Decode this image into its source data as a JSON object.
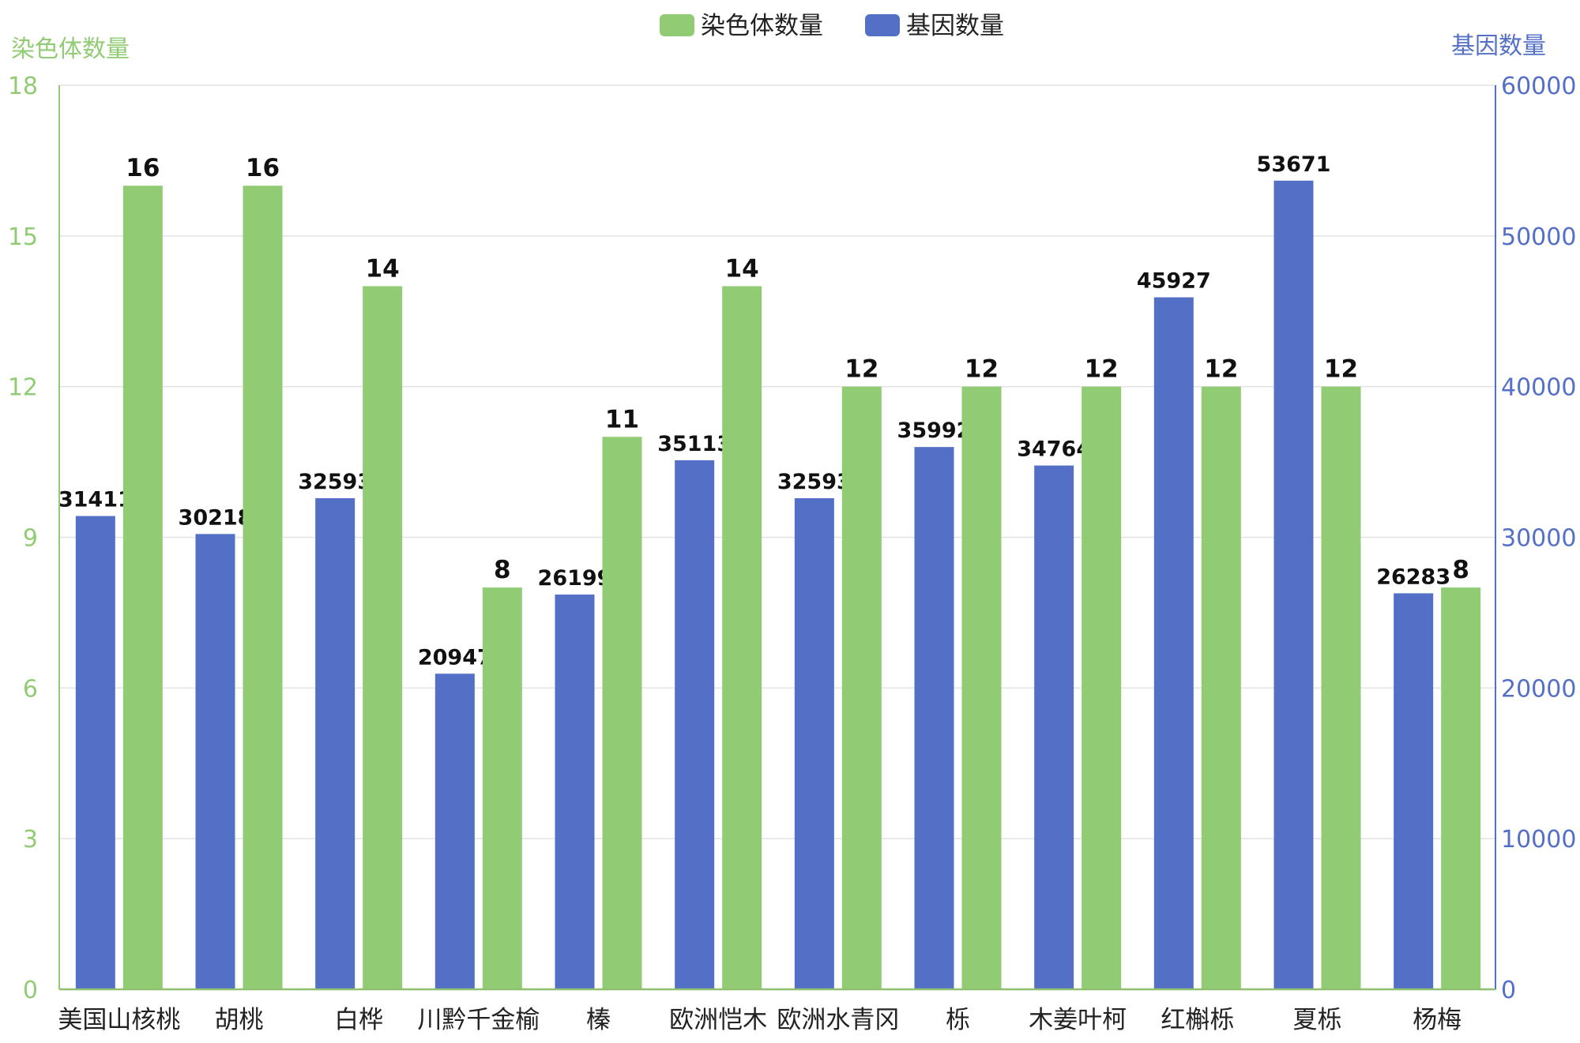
{
  "chart_data": {
    "type": "bar",
    "title": "",
    "legend_position": "top-center",
    "grid": true,
    "categories": [
      "美国山核桃",
      "胡桃",
      "白桦",
      "川黔千金榆",
      "榛",
      "欧洲恺木",
      "欧洲水青冈",
      "栎",
      "木姜叶柯",
      "红槲栎",
      "夏栎",
      "杨梅"
    ],
    "left_axis": {
      "label": "染色体数量",
      "ylim": [
        0,
        18
      ],
      "ticks": [
        0,
        3,
        6,
        9,
        12,
        15,
        18
      ],
      "color": "#91cc75"
    },
    "right_axis": {
      "label": "基因数量",
      "ylim": [
        0,
        60000
      ],
      "ticks": [
        0,
        10000,
        20000,
        30000,
        40000,
        50000,
        60000
      ],
      "color": "#5470c6"
    },
    "series": [
      {
        "name": "基因数量",
        "axis": "right",
        "color": "#5470c6",
        "values": [
          31411,
          30218,
          32593,
          20947,
          26199,
          35113,
          32593,
          35992,
          34764,
          45927,
          53671,
          26283
        ]
      },
      {
        "name": "染色体数量",
        "axis": "left",
        "color": "#91cc75",
        "values": [
          16,
          16,
          14,
          8,
          11,
          14,
          12,
          12,
          12,
          12,
          12,
          8
        ]
      }
    ],
    "legend": [
      {
        "name": "染色体数量",
        "color": "#91cc75"
      },
      {
        "name": "基因数量",
        "color": "#5470c6"
      }
    ]
  }
}
